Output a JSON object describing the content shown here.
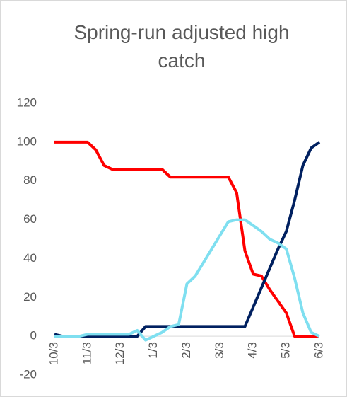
{
  "chart_data": {
    "type": "line",
    "title": "Spring-run adjusted high catch",
    "categories": [
      "10/3",
      null,
      null,
      null,
      "11/3",
      null,
      null,
      null,
      "12/3",
      null,
      null,
      null,
      "1/3",
      null,
      null,
      null,
      "2/3",
      null,
      null,
      null,
      "3/3",
      null,
      null,
      null,
      "4/3",
      null,
      null,
      null,
      "5/3",
      null,
      null,
      null,
      "6/3"
    ],
    "series": [
      {
        "name": "Red series",
        "color": "#ff0000",
        "values": [
          100,
          100,
          100,
          100,
          100,
          96,
          88,
          86,
          86,
          86,
          86,
          86,
          86,
          86,
          82,
          82,
          82,
          82,
          82,
          82,
          82,
          82,
          74,
          44,
          32,
          31,
          24,
          18,
          12,
          0,
          0,
          0,
          0
        ]
      },
      {
        "name": "Navy series",
        "color": "#002060",
        "values": [
          1,
          0,
          0,
          0,
          0,
          0,
          0,
          0,
          0,
          0,
          0,
          5,
          5,
          5,
          5,
          5,
          5,
          5,
          5,
          5,
          5,
          5,
          5,
          5,
          15,
          25,
          35,
          45,
          54,
          70,
          88,
          97,
          100
        ]
      },
      {
        "name": "Cyan series",
        "color": "#7fdff0",
        "values": [
          0,
          0,
          0,
          0,
          1,
          1,
          1,
          1,
          1,
          1,
          3,
          -2,
          0,
          2,
          5,
          6,
          27,
          31,
          38,
          45,
          52,
          59,
          60,
          60,
          57,
          54,
          50,
          48,
          45,
          30,
          12,
          2,
          0
        ]
      }
    ],
    "ylim": [
      -20,
      120
    ],
    "yticks": [
      -20,
      0,
      20,
      40,
      60,
      80,
      100,
      120
    ],
    "grid": false,
    "legend": false
  }
}
